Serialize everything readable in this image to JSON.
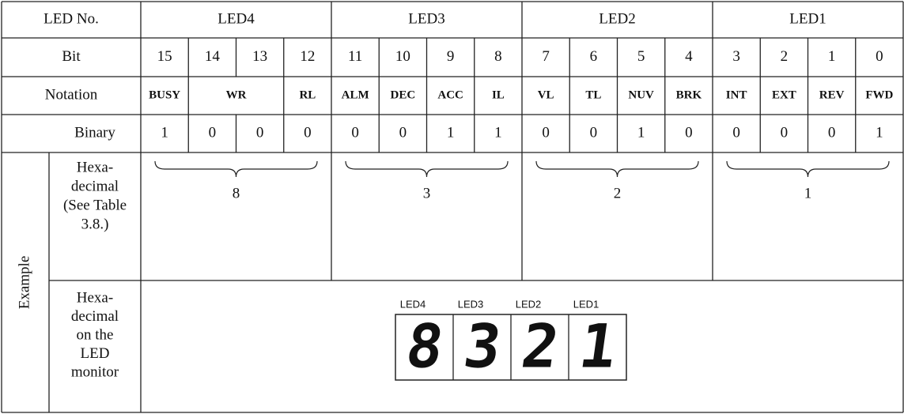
{
  "table": {
    "header": [
      "LED No.",
      "LED4",
      "LED3",
      "LED2",
      "LED1"
    ],
    "bit_label": "Bit",
    "bits": [
      15,
      14,
      13,
      12,
      11,
      10,
      9,
      8,
      7,
      6,
      5,
      4,
      3,
      2,
      1,
      0
    ],
    "notation_label": "Notation",
    "notation": [
      "BUSY",
      "WR",
      "RL",
      "ALM",
      "DEC",
      "ACC",
      "IL",
      "VL",
      "TL",
      "NUV",
      "BRK",
      "INT",
      "EXT",
      "REV",
      "FWD"
    ],
    "example_label": "Example",
    "binary_label": "Binary",
    "binary": [
      1,
      0,
      0,
      0,
      0,
      0,
      1,
      1,
      0,
      0,
      1,
      0,
      0,
      0,
      0,
      1
    ],
    "hex_label": [
      "Hexa-",
      "decimal",
      "(See Table",
      "3.8.)"
    ],
    "hex": [
      8,
      3,
      2,
      1
    ],
    "monitor_label": [
      "Hexa-",
      "decimal",
      "on the",
      "LED",
      "monitor"
    ],
    "monitor_led_labels": [
      "LED4",
      "LED3",
      "LED2",
      "LED1"
    ],
    "monitor_digits": [
      8,
      3,
      2,
      1
    ]
  }
}
